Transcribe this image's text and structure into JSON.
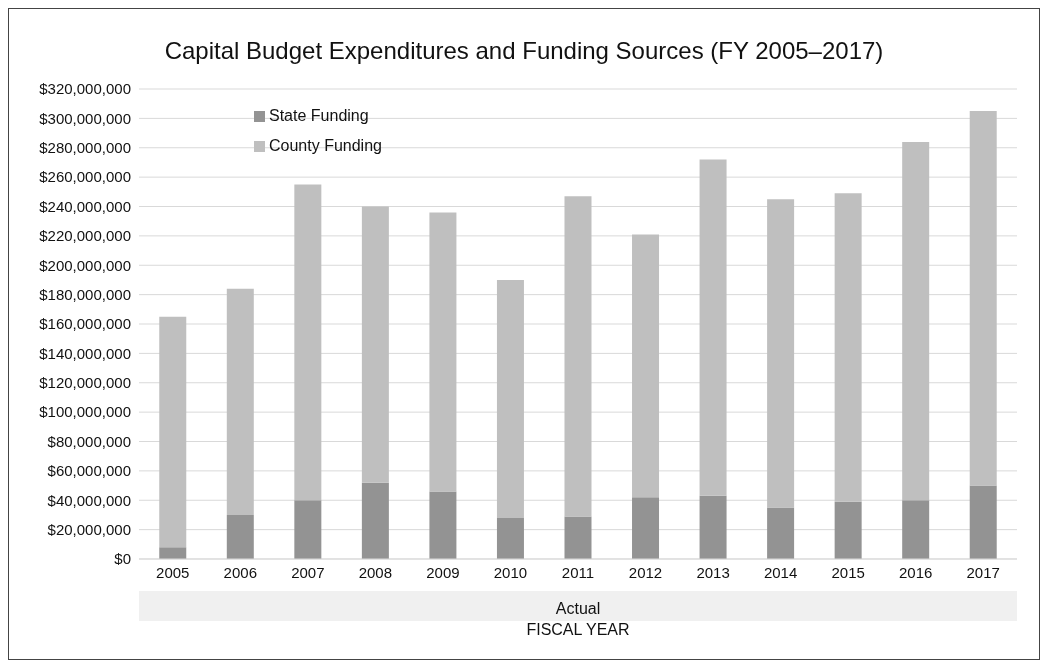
{
  "chart_data": {
    "type": "bar",
    "title": "Capital Budget Expenditures and Funding Sources (FY 2005–2017)",
    "xlabel": "FISCAL YEAR",
    "annotations": [
      "Actual"
    ],
    "categories": [
      "2005",
      "2006",
      "2007",
      "2008",
      "2009",
      "2010",
      "2011",
      "2012",
      "2013",
      "2014",
      "2015",
      "2016",
      "2017"
    ],
    "stacked": true,
    "series": [
      {
        "name": "State Funding",
        "color": "#939393",
        "values": [
          8000000,
          30000000,
          40000000,
          52000000,
          46000000,
          28000000,
          29000000,
          42000000,
          43000000,
          35000000,
          39000000,
          40000000,
          50000000
        ]
      },
      {
        "name": "County Funding",
        "color": "#bfbfbf",
        "values": [
          157000000,
          154000000,
          215000000,
          188000000,
          190000000,
          162000000,
          218000000,
          179000000,
          229000000,
          210000000,
          210000000,
          244000000,
          255000000
        ]
      }
    ],
    "ylim": [
      0,
      320000000
    ],
    "yticks": [
      {
        "value": 0,
        "label": "$0"
      },
      {
        "value": 20000000,
        "label": "$20,000,000"
      },
      {
        "value": 40000000,
        "label": "$40,000,000"
      },
      {
        "value": 60000000,
        "label": "$60,000,000"
      },
      {
        "value": 80000000,
        "label": "$80,000,000"
      },
      {
        "value": 100000000,
        "label": "$100,000,000"
      },
      {
        "value": 120000000,
        "label": "$120,000,000"
      },
      {
        "value": 140000000,
        "label": "$140,000,000"
      },
      {
        "value": 160000000,
        "label": "$160,000,000"
      },
      {
        "value": 180000000,
        "label": "$180,000,000"
      },
      {
        "value": 200000000,
        "label": "$200,000,000"
      },
      {
        "value": 220000000,
        "label": "$220,000,000"
      },
      {
        "value": 240000000,
        "label": "$240,000,000"
      },
      {
        "value": 260000000,
        "label": "$260,000,000"
      },
      {
        "value": 280000000,
        "label": "$280,000,000"
      },
      {
        "value": 300000000,
        "label": "$300,000,000"
      },
      {
        "value": 320000000,
        "label": "$320,000,000"
      }
    ],
    "grid": "y",
    "legend": "top left"
  }
}
